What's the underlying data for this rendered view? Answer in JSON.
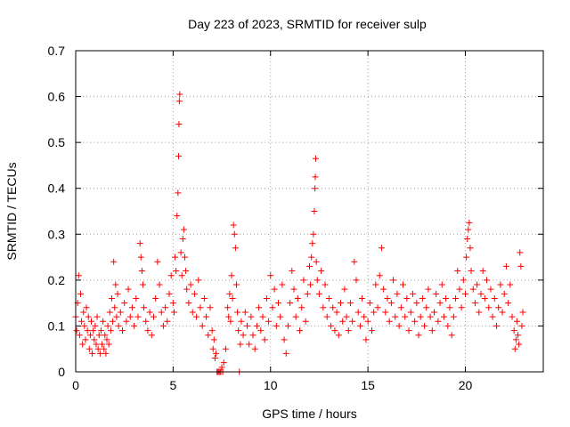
{
  "chart_data": {
    "type": "scatter",
    "title": "Day 223 of 2023, SRMTID for receiver sulp",
    "xlabel": "GPS time / hours",
    "ylabel": "SRMTID / TECUs",
    "xlim": [
      0,
      24
    ],
    "ylim": [
      0,
      0.7
    ],
    "xticks": [
      0,
      5,
      10,
      15,
      20
    ],
    "yticks": [
      0,
      0.1,
      0.2,
      0.3,
      0.4,
      0.5,
      0.6,
      0.7
    ],
    "xtick_labels": [
      "0",
      "5",
      "10",
      "15",
      "20"
    ],
    "ytick_labels": [
      "0",
      "0.1",
      "0.2",
      "0.3",
      "0.4",
      "0.5",
      "0.6",
      "0.7"
    ],
    "grid": true,
    "marker": "plus",
    "color": "#ff0000",
    "series": [
      {
        "name": "SRMTID",
        "points": [
          [
            0.0,
            0.12
          ],
          [
            0.05,
            0.09
          ],
          [
            0.1,
            0.15
          ],
          [
            0.15,
            0.21
          ],
          [
            0.2,
            0.08
          ],
          [
            0.25,
            0.17
          ],
          [
            0.3,
            0.11
          ],
          [
            0.35,
            0.06
          ],
          [
            0.4,
            0.13
          ],
          [
            0.45,
            0.1
          ],
          [
            0.5,
            0.07
          ],
          [
            0.55,
            0.14
          ],
          [
            0.6,
            0.09
          ],
          [
            0.65,
            0.12
          ],
          [
            0.7,
            0.05
          ],
          [
            0.75,
            0.08
          ],
          [
            0.8,
            0.11
          ],
          [
            0.85,
            0.04
          ],
          [
            0.9,
            0.09
          ],
          [
            0.95,
            0.07
          ],
          [
            1.0,
            0.1
          ],
          [
            1.05,
            0.06
          ],
          [
            1.1,
            0.12
          ],
          [
            1.15,
            0.05
          ],
          [
            1.2,
            0.08
          ],
          [
            1.25,
            0.04
          ],
          [
            1.3,
            0.09
          ],
          [
            1.35,
            0.06
          ],
          [
            1.4,
            0.11
          ],
          [
            1.45,
            0.05
          ],
          [
            1.5,
            0.08
          ],
          [
            1.55,
            0.04
          ],
          [
            1.6,
            0.07
          ],
          [
            1.65,
            0.1
          ],
          [
            1.7,
            0.06
          ],
          [
            1.75,
            0.13
          ],
          [
            1.8,
            0.09
          ],
          [
            1.85,
            0.16
          ],
          [
            1.9,
            0.11
          ],
          [
            1.95,
            0.24
          ],
          [
            2.0,
            0.14
          ],
          [
            2.05,
            0.19
          ],
          [
            2.1,
            0.12
          ],
          [
            2.15,
            0.17
          ],
          [
            2.2,
            0.1
          ],
          [
            2.3,
            0.13
          ],
          [
            2.4,
            0.09
          ],
          [
            2.5,
            0.15
          ],
          [
            2.6,
            0.11
          ],
          [
            2.7,
            0.18
          ],
          [
            2.8,
            0.12
          ],
          [
            2.9,
            0.14
          ],
          [
            3.0,
            0.1
          ],
          [
            3.1,
            0.16
          ],
          [
            3.2,
            0.12
          ],
          [
            3.3,
            0.28
          ],
          [
            3.35,
            0.25
          ],
          [
            3.4,
            0.22
          ],
          [
            3.45,
            0.19
          ],
          [
            3.5,
            0.14
          ],
          [
            3.6,
            0.11
          ],
          [
            3.7,
            0.09
          ],
          [
            3.8,
            0.13
          ],
          [
            3.9,
            0.08
          ],
          [
            4.0,
            0.12
          ],
          [
            4.1,
            0.16
          ],
          [
            4.2,
            0.24
          ],
          [
            4.3,
            0.19
          ],
          [
            4.4,
            0.13
          ],
          [
            4.5,
            0.1
          ],
          [
            4.6,
            0.14
          ],
          [
            4.7,
            0.11
          ],
          [
            4.8,
            0.17
          ],
          [
            4.9,
            0.21
          ],
          [
            5.0,
            0.15
          ],
          [
            5.05,
            0.13
          ],
          [
            5.1,
            0.25
          ],
          [
            5.15,
            0.22
          ],
          [
            5.2,
            0.34
          ],
          [
            5.25,
            0.39
          ],
          [
            5.28,
            0.47
          ],
          [
            5.3,
            0.54
          ],
          [
            5.32,
            0.59
          ],
          [
            5.34,
            0.605
          ],
          [
            5.4,
            0.26
          ],
          [
            5.45,
            0.21
          ],
          [
            5.5,
            0.29
          ],
          [
            5.55,
            0.31
          ],
          [
            5.6,
            0.25
          ],
          [
            5.65,
            0.22
          ],
          [
            5.7,
            0.18
          ],
          [
            5.8,
            0.15
          ],
          [
            5.9,
            0.19
          ],
          [
            6.0,
            0.13
          ],
          [
            6.1,
            0.17
          ],
          [
            6.2,
            0.12
          ],
          [
            6.3,
            0.2
          ],
          [
            6.4,
            0.14
          ],
          [
            6.5,
            0.1
          ],
          [
            6.6,
            0.16
          ],
          [
            6.7,
            0.12
          ],
          [
            6.8,
            0.08
          ],
          [
            6.9,
            0.14
          ],
          [
            7.0,
            0.09
          ],
          [
            7.05,
            0.05
          ],
          [
            7.1,
            0.07
          ],
          [
            7.15,
            0.03
          ],
          [
            7.2,
            0.04
          ],
          [
            7.25,
            0.0
          ],
          [
            7.3,
            0.0
          ],
          [
            7.35,
            0.0
          ],
          [
            7.4,
            0.0
          ],
          [
            7.45,
            0.0
          ],
          [
            7.5,
            0.01
          ],
          [
            7.55,
            0.0
          ],
          [
            7.6,
            0.02
          ],
          [
            7.7,
            0.05
          ],
          [
            7.8,
            0.14
          ],
          [
            7.85,
            0.12
          ],
          [
            7.9,
            0.17
          ],
          [
            7.95,
            0.11
          ],
          [
            8.0,
            0.21
          ],
          [
            8.05,
            0.16
          ],
          [
            8.1,
            0.32
          ],
          [
            8.15,
            0.3
          ],
          [
            8.2,
            0.27
          ],
          [
            8.25,
            0.19
          ],
          [
            8.3,
            0.13
          ],
          [
            8.35,
            0.09
          ],
          [
            8.4,
            0.0
          ],
          [
            8.45,
            0.06
          ],
          [
            8.5,
            0.11
          ],
          [
            8.6,
            0.08
          ],
          [
            8.7,
            0.13
          ],
          [
            8.8,
            0.1
          ],
          [
            8.9,
            0.06
          ],
          [
            9.0,
            0.12
          ],
          [
            9.1,
            0.08
          ],
          [
            9.2,
            0.05
          ],
          [
            9.3,
            0.1
          ],
          [
            9.4,
            0.14
          ],
          [
            9.5,
            0.09
          ],
          [
            9.6,
            0.12
          ],
          [
            9.7,
            0.07
          ],
          [
            9.8,
            0.16
          ],
          [
            9.9,
            0.11
          ],
          [
            10.0,
            0.21
          ],
          [
            10.1,
            0.14
          ],
          [
            10.2,
            0.18
          ],
          [
            10.3,
            0.1
          ],
          [
            10.4,
            0.15
          ],
          [
            10.5,
            0.12
          ],
          [
            10.6,
            0.19
          ],
          [
            10.7,
            0.07
          ],
          [
            10.8,
            0.04
          ],
          [
            10.9,
            0.1
          ],
          [
            11.0,
            0.15
          ],
          [
            11.1,
            0.22
          ],
          [
            11.2,
            0.18
          ],
          [
            11.3,
            0.12
          ],
          [
            11.4,
            0.16
          ],
          [
            11.5,
            0.09
          ],
          [
            11.6,
            0.14
          ],
          [
            11.7,
            0.2
          ],
          [
            11.8,
            0.11
          ],
          [
            11.9,
            0.17
          ],
          [
            12.0,
            0.23
          ],
          [
            12.05,
            0.19
          ],
          [
            12.1,
            0.25
          ],
          [
            12.15,
            0.28
          ],
          [
            12.2,
            0.3
          ],
          [
            12.25,
            0.35
          ],
          [
            12.28,
            0.4
          ],
          [
            12.3,
            0.425
          ],
          [
            12.32,
            0.465
          ],
          [
            12.35,
            0.24
          ],
          [
            12.4,
            0.2
          ],
          [
            12.5,
            0.17
          ],
          [
            12.6,
            0.22
          ],
          [
            12.7,
            0.14
          ],
          [
            12.8,
            0.19
          ],
          [
            12.9,
            0.12
          ],
          [
            13.0,
            0.16
          ],
          [
            13.1,
            0.1
          ],
          [
            13.2,
            0.14
          ],
          [
            13.3,
            0.09
          ],
          [
            13.4,
            0.13
          ],
          [
            13.5,
            0.08
          ],
          [
            13.6,
            0.15
          ],
          [
            13.7,
            0.11
          ],
          [
            13.8,
            0.18
          ],
          [
            13.9,
            0.12
          ],
          [
            14.0,
            0.09
          ],
          [
            14.1,
            0.15
          ],
          [
            14.2,
            0.11
          ],
          [
            14.3,
            0.24
          ],
          [
            14.4,
            0.2
          ],
          [
            14.5,
            0.13
          ],
          [
            14.6,
            0.1
          ],
          [
            14.7,
            0.16
          ],
          [
            14.8,
            0.12
          ],
          [
            14.9,
            0.07
          ],
          [
            15.0,
            0.11
          ],
          [
            15.1,
            0.15
          ],
          [
            15.2,
            0.09
          ],
          [
            15.3,
            0.13
          ],
          [
            15.4,
            0.19
          ],
          [
            15.5,
            0.14
          ],
          [
            15.6,
            0.21
          ],
          [
            15.7,
            0.27
          ],
          [
            15.8,
            0.18
          ],
          [
            15.9,
            0.13
          ],
          [
            16.0,
            0.16
          ],
          [
            16.1,
            0.11
          ],
          [
            16.2,
            0.15
          ],
          [
            16.3,
            0.2
          ],
          [
            16.4,
            0.12
          ],
          [
            16.5,
            0.17
          ],
          [
            16.6,
            0.1
          ],
          [
            16.7,
            0.14
          ],
          [
            16.8,
            0.19
          ],
          [
            16.9,
            0.12
          ],
          [
            17.0,
            0.16
          ],
          [
            17.1,
            0.09
          ],
          [
            17.2,
            0.13
          ],
          [
            17.3,
            0.17
          ],
          [
            17.4,
            0.11
          ],
          [
            17.5,
            0.15
          ],
          [
            17.6,
            0.08
          ],
          [
            17.7,
            0.12
          ],
          [
            17.8,
            0.16
          ],
          [
            17.9,
            0.1
          ],
          [
            18.0,
            0.14
          ],
          [
            18.1,
            0.18
          ],
          [
            18.2,
            0.12
          ],
          [
            18.3,
            0.09
          ],
          [
            18.4,
            0.13
          ],
          [
            18.5,
            0.17
          ],
          [
            18.6,
            0.11
          ],
          [
            18.7,
            0.15
          ],
          [
            18.8,
            0.19
          ],
          [
            18.9,
            0.12
          ],
          [
            19.0,
            0.16
          ],
          [
            19.1,
            0.1
          ],
          [
            19.2,
            0.14
          ],
          [
            19.3,
            0.08
          ],
          [
            19.4,
            0.12
          ],
          [
            19.5,
            0.16
          ],
          [
            19.6,
            0.22
          ],
          [
            19.7,
            0.18
          ],
          [
            19.8,
            0.14
          ],
          [
            19.9,
            0.2
          ],
          [
            20.0,
            0.17
          ],
          [
            20.05,
            0.25
          ],
          [
            20.1,
            0.29
          ],
          [
            20.15,
            0.31
          ],
          [
            20.2,
            0.325
          ],
          [
            20.25,
            0.27
          ],
          [
            20.3,
            0.22
          ],
          [
            20.4,
            0.18
          ],
          [
            20.5,
            0.15
          ],
          [
            20.6,
            0.19
          ],
          [
            20.7,
            0.13
          ],
          [
            20.8,
            0.17
          ],
          [
            20.9,
            0.22
          ],
          [
            21.0,
            0.16
          ],
          [
            21.1,
            0.2
          ],
          [
            21.2,
            0.14
          ],
          [
            21.3,
            0.18
          ],
          [
            21.4,
            0.12
          ],
          [
            21.5,
            0.16
          ],
          [
            21.6,
            0.1
          ],
          [
            21.7,
            0.14
          ],
          [
            21.8,
            0.19
          ],
          [
            21.9,
            0.13
          ],
          [
            22.0,
            0.17
          ],
          [
            22.1,
            0.23
          ],
          [
            22.2,
            0.15
          ],
          [
            22.3,
            0.19
          ],
          [
            22.4,
            0.12
          ],
          [
            22.5,
            0.09
          ],
          [
            22.55,
            0.05
          ],
          [
            22.6,
            0.07
          ],
          [
            22.65,
            0.11
          ],
          [
            22.7,
            0.08
          ],
          [
            22.75,
            0.06
          ],
          [
            22.8,
            0.26
          ],
          [
            22.85,
            0.23
          ],
          [
            22.9,
            0.1
          ],
          [
            22.95,
            0.13
          ]
        ]
      }
    ]
  }
}
